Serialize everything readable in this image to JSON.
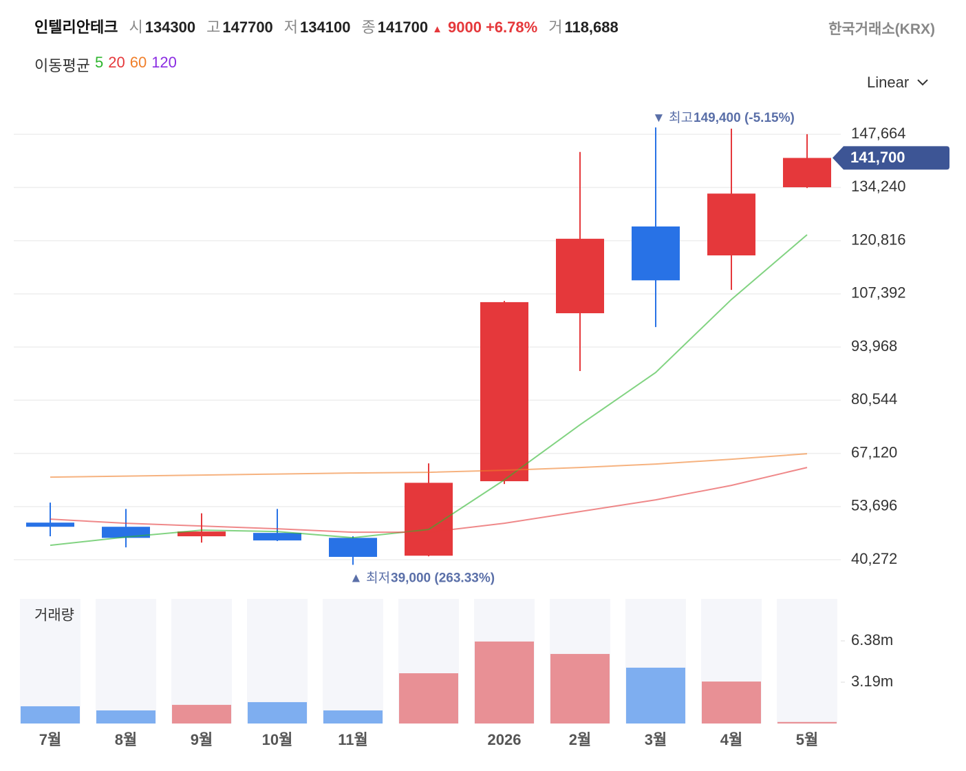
{
  "header": {
    "title": "인텔리안테크",
    "open_label": "시",
    "open": "134300",
    "high_label": "고",
    "high": "147700",
    "low_label": "저",
    "low": "134100",
    "close_label": "종",
    "close": "141700",
    "change_arrow": "▲",
    "change": "9000",
    "change_pct": "+6.78%",
    "volume_label": "거",
    "volume": "118,688",
    "exchange": "한국거래소(KRX)",
    "ma_label": "이동평균",
    "scale": "Linear"
  },
  "chart_data": {
    "type": "candlestick",
    "categories": [
      "7월",
      "8월",
      "9월",
      "10월",
      "11월",
      null,
      "2026",
      "2월",
      "3월",
      "4월",
      "5월"
    ],
    "open": [
      49650,
      48600,
      46200,
      47050,
      45800,
      41300,
      60100,
      102500,
      124400,
      117100,
      134300
    ],
    "high": [
      54700,
      53100,
      52000,
      53100,
      46200,
      64600,
      105600,
      143200,
      149400,
      149100,
      147700
    ],
    "low": [
      46200,
      43400,
      44600,
      45000,
      39000,
      41150,
      59400,
      87900,
      99000,
      108400,
      134100
    ],
    "close": [
      48600,
      45800,
      47400,
      45150,
      41000,
      59700,
      105300,
      121300,
      110800,
      132700,
      141700
    ],
    "up_color": "#e5383b",
    "down_color": "#2872e6",
    "ylim": [
      33000,
      155500
    ],
    "yticks": [
      {
        "value": 40272,
        "label": "40,272"
      },
      {
        "value": 53696,
        "label": "53,696"
      },
      {
        "value": 67120,
        "label": "67,120"
      },
      {
        "value": 80544,
        "label": "80,544"
      },
      {
        "value": 93968,
        "label": "93,968"
      },
      {
        "value": 107392,
        "label": "107,392"
      },
      {
        "value": 120816,
        "label": "120,816"
      },
      {
        "value": 134240,
        "label": "134,240"
      },
      {
        "value": 147664,
        "label": "147,664"
      }
    ],
    "grid": true,
    "moving_averages": [
      {
        "name": "5",
        "color": "#2db52d",
        "values": [
          43922,
          46007,
          47745,
          47398,
          45834,
          47919,
          60433,
          74337,
          87546,
          105968,
          122306
        ]
      },
      {
        "name": "20",
        "color": "#e5383b",
        "values": [
          50526,
          49483,
          48788,
          48093,
          47224,
          47224,
          49483,
          52438,
          55393,
          59043,
          63561
        ]
      },
      {
        "name": "60",
        "color": "#f07f2a",
        "values": [
          61128,
          61389,
          61650,
          61910,
          62171,
          62345,
          62866,
          63561,
          64430,
          65647,
          67037
        ]
      },
      {
        "name": "120",
        "color": "#8a2be2"
      }
    ],
    "price_tag": {
      "value": 141700,
      "label": "141,700"
    },
    "max_annotation": {
      "prefix": "▼ 최고",
      "value": 149400,
      "label": "149,400 (-5.15%)"
    },
    "min_annotation": {
      "prefix": "▲ 최저",
      "value": 39000,
      "label": "39,000 (263.33%)"
    },
    "volume": {
      "title": "거래량",
      "values": [
        1330000,
        1010000,
        1440000,
        1650000,
        1010000,
        3880000,
        6330000,
        5370000,
        4310000,
        3240000,
        118688
      ],
      "up_color": "#e89095",
      "down_color": "#7eaef0",
      "ylim": [
        0,
        9620000
      ],
      "yticks": [
        {
          "value": 3190000,
          "label": "3.19m"
        },
        {
          "value": 6380000,
          "label": "6.38m"
        }
      ]
    }
  }
}
